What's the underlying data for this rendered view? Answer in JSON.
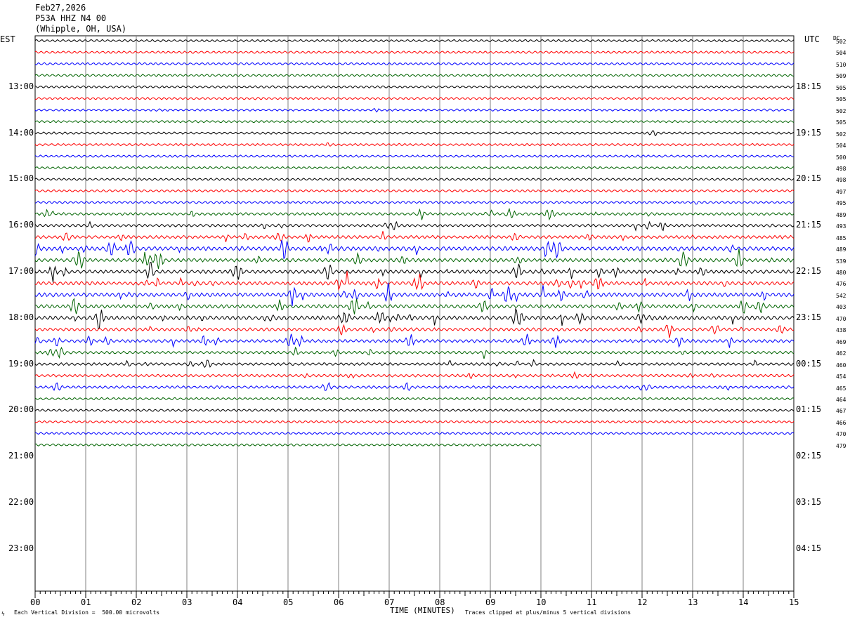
{
  "header": {
    "date": "Feb27,2026",
    "station": "P53A HHZ N4 00",
    "location": "(Whipple, OH, USA)"
  },
  "left_axis_label": "EST",
  "right_axis_label": "UTC",
  "dc_label": "DC",
  "footer": {
    "scale_note": "Each Vertical Division =  500.00 microvolts",
    "x_title": "TIME (MINUTES)",
    "clip_note": "Traces clipped at plus/minus 5 vertical divisions",
    "corner_mark": "ϟ"
  },
  "chart_data": {
    "type": "line",
    "title": "",
    "xlabel": "TIME (MINUTES)",
    "ylabel": "",
    "xlim": [
      0,
      15
    ],
    "x_ticks": [
      "00",
      "01",
      "02",
      "03",
      "04",
      "05",
      "06",
      "07",
      "08",
      "09",
      "10",
      "11",
      "12",
      "13",
      "14",
      "15"
    ],
    "left_hour_labels": [
      "13:00",
      "14:00",
      "15:00",
      "16:00",
      "17:00",
      "18:00",
      "19:00",
      "20:00",
      "21:00",
      "22:00",
      "23:00"
    ],
    "right_hour_labels": [
      "18:15",
      "19:15",
      "20:15",
      "21:15",
      "22:15",
      "23:15",
      "00:15",
      "01:15",
      "02:15",
      "03:15",
      "04:15"
    ],
    "trace_colors": [
      "#000000",
      "#ff0000",
      "#0000ff",
      "#006400"
    ],
    "grid": true,
    "trace_dc_offsets": [
      502,
      504,
      510,
      509,
      505,
      505,
      502,
      505,
      502,
      504,
      500,
      498,
      498,
      497,
      495,
      489,
      493,
      485,
      489,
      539,
      480,
      476,
      542,
      403,
      470,
      438,
      469,
      462,
      460,
      454,
      465,
      464,
      467,
      466,
      470,
      479
    ],
    "trace_activity": [
      1,
      1,
      1,
      1,
      1,
      1,
      1,
      1,
      1,
      1,
      1,
      1,
      1,
      1,
      1,
      2,
      2,
      3,
      5,
      4,
      4,
      4,
      5,
      4,
      5,
      3,
      3,
      2,
      2,
      2,
      2,
      1,
      1,
      1,
      1,
      1
    ],
    "last_trace_end_minute": 10
  }
}
